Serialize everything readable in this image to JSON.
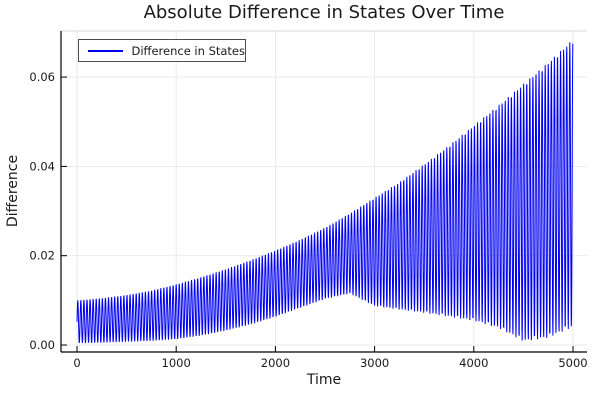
{
  "chart_data": {
    "type": "line",
    "title": "Absolute Difference in States Over Time",
    "xlabel": "Time",
    "ylabel": "Difference",
    "series_name": "Difference in States",
    "line_color": "#0000f0",
    "background_color": "#ffffff",
    "grid": true,
    "grid_color": "#e8e8e8",
    "legend_position": "top-left",
    "xlim": [
      0,
      5000
    ],
    "ylim": [
      0.0,
      0.07
    ],
    "xticks": [
      0,
      1000,
      2000,
      3000,
      4000,
      5000
    ],
    "xtick_labels": [
      "0",
      "1000",
      "2000",
      "3000",
      "4000",
      "5000"
    ],
    "yticks": [
      0.0,
      0.02,
      0.04,
      0.06
    ],
    "ytick_labels": [
      "0.00",
      "0.02",
      "0.04",
      "0.06"
    ],
    "waveform": "dense oscillation between lower and upper envelope, ~161 cycles over 0..5000",
    "oscillation_period": 31,
    "envelope_t": [
      0,
      250,
      500,
      750,
      1000,
      1250,
      1500,
      1750,
      2000,
      2250,
      2500,
      2750,
      3000,
      3250,
      3500,
      3750,
      4000,
      4250,
      4500,
      4750,
      5000
    ],
    "envelope_upper": [
      0.01,
      0.0105,
      0.0112,
      0.0122,
      0.0136,
      0.0152,
      0.017,
      0.019,
      0.0212,
      0.0236,
      0.0263,
      0.0295,
      0.033,
      0.0365,
      0.0405,
      0.0447,
      0.0492,
      0.0537,
      0.0585,
      0.0633,
      0.0685
    ],
    "envelope_lower": [
      0.0004,
      0.0005,
      0.0007,
      0.0009,
      0.0013,
      0.0021,
      0.0032,
      0.0046,
      0.0063,
      0.0083,
      0.0103,
      0.0115,
      0.0087,
      0.0079,
      0.0072,
      0.0063,
      0.0054,
      0.0038,
      0.0008,
      0.0016,
      0.004
    ]
  }
}
